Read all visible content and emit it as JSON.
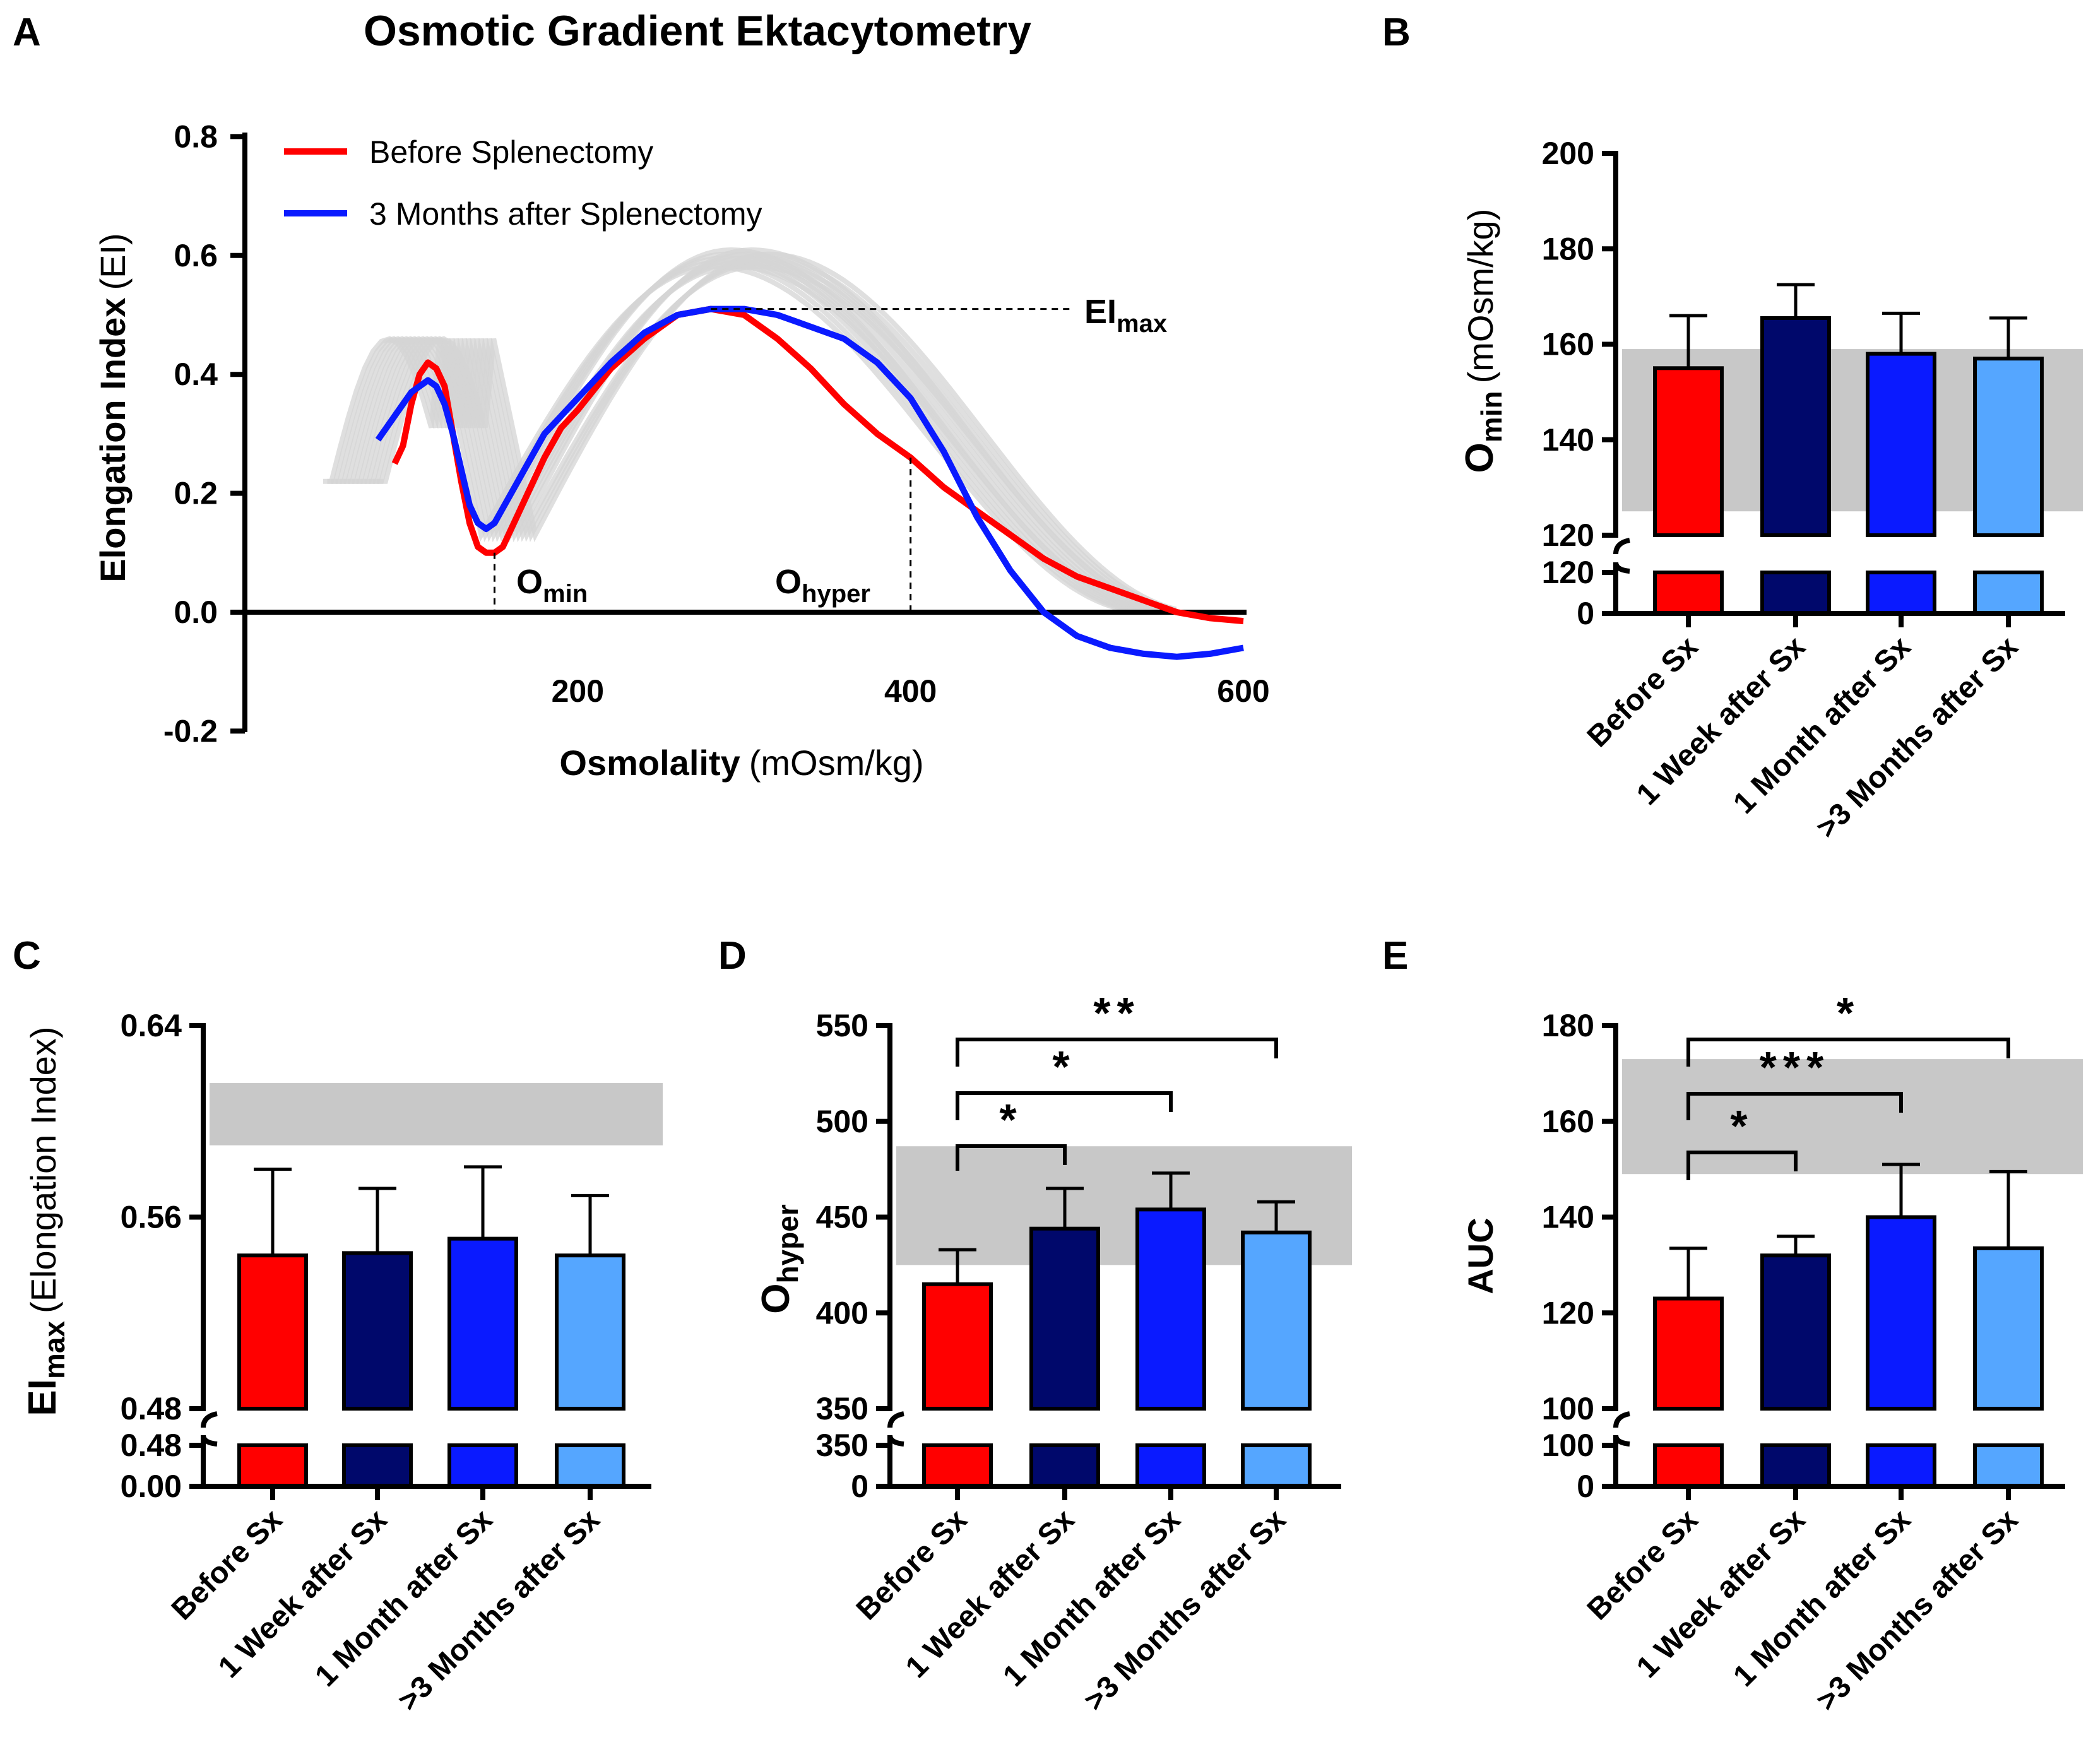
{
  "colors": {
    "before": "#ff0000",
    "week1": "#00086b",
    "month1": "#0a1aff",
    "month3": "#55a6ff",
    "reference_band": "#c8c8c8",
    "control_curves": "#d4d4d4"
  },
  "categories": [
    "Before Sx",
    "1 Week after Sx",
    "1 Month after Sx",
    ">3 Months after Sx"
  ],
  "panel_a": {
    "letter": "A",
    "title": "Osmotic Gradient Ektacytometry",
    "legend": [
      {
        "label": "Before Splenectomy",
        "color": "#ff0000"
      },
      {
        "label": "3 Months after Splenectomy",
        "color": "#0a1aff"
      }
    ],
    "annotations": {
      "eimax": "EI",
      "eimax_sub": "max",
      "omin": "O",
      "omin_sub": "min",
      "ohyper": "O",
      "ohyper_sub": "hyper"
    },
    "ylabel": "Elongation Index",
    "ylabel_unit": "(EI)",
    "xlabel": "Osmolality",
    "xlabel_unit": "(mOsm/kg)"
  },
  "panel_b": {
    "letter": "B",
    "ylabel": "O",
    "ylabel_sub": "min",
    "ylabel_unit": "(mOsm/kg)"
  },
  "panel_c": {
    "letter": "C",
    "ylabel": "EI",
    "ylabel_sub": "max",
    "ylabel_unit": "(Elongation Index)"
  },
  "panel_d": {
    "letter": "D",
    "ylabel": "O",
    "ylabel_sub": "hyper"
  },
  "panel_e": {
    "letter": "E",
    "ylabel": "AUC"
  },
  "chart_data": [
    {
      "id": "A",
      "type": "line",
      "title": "Osmotic Gradient Ektacytometry",
      "xlabel": "Osmolality (mOsm/kg)",
      "ylabel": "Elongation Index (EI)",
      "xlim": [
        0,
        600
      ],
      "ylim": [
        -0.2,
        0.8
      ],
      "xticks": [
        200,
        400,
        600
      ],
      "yticks": [
        -0.2,
        0.0,
        0.2,
        0.4,
        0.6,
        0.8
      ],
      "ytick_labels": [
        "-0.2",
        "0.0",
        "0.2",
        "0.4",
        "0.6",
        "0.8"
      ],
      "series": [
        {
          "name": "Before Splenectomy",
          "color": "#ff0000",
          "x": [
            90,
            95,
            100,
            105,
            110,
            115,
            120,
            125,
            130,
            135,
            140,
            145,
            150,
            155,
            160,
            170,
            180,
            190,
            200,
            220,
            240,
            260,
            280,
            300,
            320,
            340,
            360,
            380,
            400,
            420,
            440,
            460,
            480,
            500,
            520,
            540,
            560,
            580,
            600
          ],
          "y": [
            0.25,
            0.28,
            0.35,
            0.4,
            0.42,
            0.41,
            0.38,
            0.3,
            0.22,
            0.15,
            0.11,
            0.1,
            0.1,
            0.11,
            0.14,
            0.2,
            0.26,
            0.31,
            0.34,
            0.41,
            0.46,
            0.5,
            0.51,
            0.5,
            0.46,
            0.41,
            0.35,
            0.3,
            0.26,
            0.21,
            0.17,
            0.13,
            0.09,
            0.06,
            0.04,
            0.02,
            0.0,
            -0.01,
            -0.015
          ]
        },
        {
          "name": "3 Months after Splenectomy",
          "color": "#0a1aff",
          "x": [
            80,
            90,
            100,
            110,
            115,
            120,
            125,
            130,
            135,
            140,
            145,
            150,
            160,
            170,
            180,
            200,
            220,
            240,
            260,
            280,
            300,
            320,
            340,
            360,
            380,
            400,
            420,
            440,
            460,
            480,
            500,
            520,
            540,
            560,
            580,
            600
          ],
          "y": [
            0.29,
            0.33,
            0.37,
            0.39,
            0.38,
            0.35,
            0.3,
            0.24,
            0.18,
            0.15,
            0.14,
            0.15,
            0.2,
            0.25,
            0.3,
            0.36,
            0.42,
            0.47,
            0.5,
            0.51,
            0.51,
            0.5,
            0.48,
            0.46,
            0.42,
            0.36,
            0.27,
            0.16,
            0.07,
            0.0,
            -0.04,
            -0.06,
            -0.07,
            -0.075,
            -0.07,
            -0.06
          ]
        }
      ],
      "control_curves_description": "healthy controls band",
      "eimax_level": 0.51,
      "omin_x": 150,
      "ohyper_x": 400
    },
    {
      "id": "B",
      "type": "bar",
      "ylabel": "Omin (mOsm/kg)",
      "categories": [
        "Before Sx",
        "1 Week after Sx",
        "1 Month after Sx",
        ">3 Months after Sx"
      ],
      "values": [
        155,
        165.5,
        158,
        157
      ],
      "errors": [
        11,
        7,
        8.5,
        8.5
      ],
      "reference_band": [
        125,
        159
      ],
      "ylim_upper": [
        120,
        200
      ],
      "yticks_upper": [
        120,
        140,
        160,
        180,
        200
      ],
      "yticks_lower": [
        0,
        120
      ],
      "significance": []
    },
    {
      "id": "C",
      "type": "bar",
      "ylabel": "EImax (Elongation Index)",
      "categories": [
        "Before Sx",
        "1 Week after Sx",
        "1 Month after Sx",
        ">3 Months after Sx"
      ],
      "values": [
        0.544,
        0.545,
        0.551,
        0.544
      ],
      "errors": [
        0.036,
        0.027,
        0.03,
        0.025
      ],
      "reference_band": [
        0.59,
        0.616
      ],
      "ylim_upper": [
        0.48,
        0.64
      ],
      "yticks_upper": [
        0.48,
        0.56,
        0.64
      ],
      "ytick_labels_upper": [
        "0.48",
        "0.56",
        "0.64"
      ],
      "yticks_lower": [
        0.0,
        0.48
      ],
      "ytick_labels_lower": [
        "0.00",
        "0.48"
      ],
      "significance": []
    },
    {
      "id": "D",
      "type": "bar",
      "ylabel": "Ohyper",
      "categories": [
        "Before Sx",
        "1 Week after Sx",
        "1 Month after Sx",
        ">3 Months after Sx"
      ],
      "values": [
        415,
        444,
        454,
        442
      ],
      "errors": [
        18,
        21,
        19,
        16
      ],
      "reference_band": [
        425,
        487
      ],
      "ylim_upper": [
        350,
        550
      ],
      "yticks_upper": [
        350,
        400,
        450,
        500,
        550
      ],
      "yticks_lower": [
        0,
        350
      ],
      "significance": [
        {
          "from": 0,
          "to": 1,
          "label": "*"
        },
        {
          "from": 0,
          "to": 2,
          "label": "*"
        },
        {
          "from": 0,
          "to": 3,
          "label": "**"
        }
      ]
    },
    {
      "id": "E",
      "type": "bar",
      "ylabel": "AUC",
      "categories": [
        "Before Sx",
        "1 Week after Sx",
        "1 Month after Sx",
        ">3 Months after Sx"
      ],
      "values": [
        123,
        132,
        140,
        133.5
      ],
      "errors": [
        10.5,
        4,
        11,
        16
      ],
      "reference_band": [
        149,
        173
      ],
      "ylim_upper": [
        100,
        180
      ],
      "yticks_upper": [
        100,
        120,
        140,
        160,
        180
      ],
      "yticks_lower": [
        0,
        100
      ],
      "significance": [
        {
          "from": 0,
          "to": 1,
          "label": "*"
        },
        {
          "from": 0,
          "to": 2,
          "label": "***"
        },
        {
          "from": 0,
          "to": 3,
          "label": "*"
        }
      ]
    }
  ]
}
